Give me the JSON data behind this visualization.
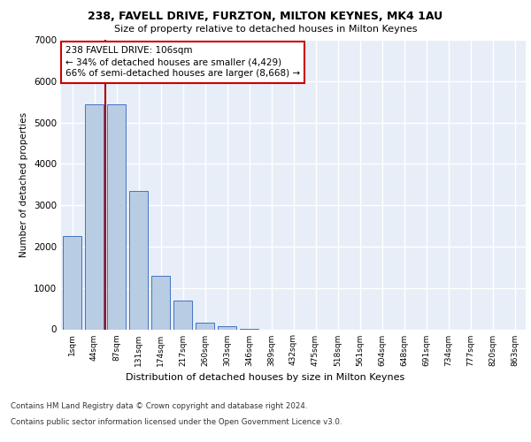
{
  "title1": "238, FAVELL DRIVE, FURZTON, MILTON KEYNES, MK4 1AU",
  "title2": "Size of property relative to detached houses in Milton Keynes",
  "xlabel": "Distribution of detached houses by size in Milton Keynes",
  "ylabel": "Number of detached properties",
  "bar_values": [
    2250,
    5450,
    5450,
    3350,
    1300,
    700,
    150,
    80,
    10,
    0,
    0,
    0,
    0,
    0,
    0,
    0,
    0,
    0,
    0,
    0,
    0
  ],
  "bar_labels": [
    "1sqm",
    "44sqm",
    "87sqm",
    "131sqm",
    "174sqm",
    "217sqm",
    "260sqm",
    "303sqm",
    "346sqm",
    "389sqm",
    "432sqm",
    "475sqm",
    "518sqm",
    "561sqm",
    "604sqm",
    "648sqm",
    "691sqm",
    "734sqm",
    "777sqm",
    "820sqm",
    "863sqm"
  ],
  "bar_color": "#b8cce4",
  "bar_edge_color": "#4472c4",
  "ylim": [
    0,
    7000
  ],
  "yticks": [
    0,
    1000,
    2000,
    3000,
    4000,
    5000,
    6000,
    7000
  ],
  "vline_x": 1.5,
  "vline_color": "#aa0000",
  "annotation_text": "238 FAVELL DRIVE: 106sqm\n← 34% of detached houses are smaller (4,429)\n66% of semi-detached houses are larger (8,668) →",
  "annotation_box_color": "#ffffff",
  "annotation_box_edge": "#cc0000",
  "footnote1": "Contains HM Land Registry data © Crown copyright and database right 2024.",
  "footnote2": "Contains public sector information licensed under the Open Government Licence v3.0.",
  "background_color": "#e8eef7",
  "grid_color": "#ffffff",
  "fig_bg": "#ffffff"
}
